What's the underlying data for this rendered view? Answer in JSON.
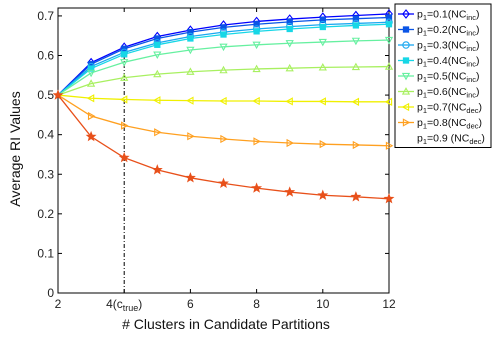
{
  "chart_data": {
    "type": "line",
    "xlabel": "# Clusters in Candidate Partitions",
    "ylabel": "Average RI Values",
    "xlim": [
      2,
      12
    ],
    "ylim": [
      0,
      0.72
    ],
    "x": [
      2,
      3,
      4,
      5,
      6,
      7,
      8,
      9,
      10,
      11,
      12
    ],
    "x_ticks": [
      {
        "value": 2,
        "label": "2"
      },
      {
        "value": 4,
        "label": "4(c",
        "sub": "true",
        "tail": ")"
      },
      {
        "value": 6,
        "label": "6"
      },
      {
        "value": 8,
        "label": "8"
      },
      {
        "value": 10,
        "label": "10"
      },
      {
        "value": 12,
        "label": "12"
      }
    ],
    "y_ticks": [
      {
        "value": 0,
        "label": "0"
      },
      {
        "value": 0.1,
        "label": "0.1"
      },
      {
        "value": 0.2,
        "label": "0.2"
      },
      {
        "value": 0.3,
        "label": "0.3"
      },
      {
        "value": 0.4,
        "label": "0.4"
      },
      {
        "value": 0.5,
        "label": "0.5"
      },
      {
        "value": 0.6,
        "label": "0.6"
      },
      {
        "value": 0.7,
        "label": "0.7"
      }
    ],
    "vline": {
      "x": 4,
      "style": "dash-dot",
      "color": "#000000"
    },
    "grid": false,
    "legend_position": "top-right-outside",
    "series": [
      {
        "name": "p1=0.1(NCinc)",
        "legend": {
          "pre": "p",
          "sub1": "1",
          "mid": "=0.1(NC",
          "sub2": "inc",
          "post": ")"
        },
        "color": "#0000ff",
        "marker": "diamond",
        "values": [
          0.5,
          0.582,
          0.621,
          0.648,
          0.664,
          0.677,
          0.686,
          0.692,
          0.697,
          0.701,
          0.705
        ]
      },
      {
        "name": "p1=0.2(NCinc)",
        "legend": {
          "pre": "p",
          "sub1": "1",
          "mid": "=0.2(NC",
          "sub2": "inc",
          "post": ")"
        },
        "color": "#0a55e6",
        "marker": "square",
        "values": [
          0.5,
          0.578,
          0.617,
          0.643,
          0.659,
          0.671,
          0.679,
          0.685,
          0.69,
          0.693,
          0.696
        ]
      },
      {
        "name": "p1=0.3(NCinc)",
        "legend": {
          "pre": "p",
          "sub1": "1",
          "mid": "=0.3(NC",
          "sub2": "inc",
          "post": ")"
        },
        "color": "#1aa8f0",
        "marker": "circle",
        "values": [
          0.5,
          0.572,
          0.608,
          0.632,
          0.648,
          0.659,
          0.667,
          0.673,
          0.678,
          0.681,
          0.684
        ]
      },
      {
        "name": "p1=0.4(NCinc)",
        "legend": {
          "pre": "p",
          "sub1": "1",
          "mid": "=0.4(NC",
          "sub2": "inc",
          "post": ")"
        },
        "color": "#17d7e6",
        "marker": "square",
        "values": [
          0.5,
          0.567,
          0.603,
          0.627,
          0.643,
          0.653,
          0.661,
          0.667,
          0.672,
          0.676,
          0.679
        ]
      },
      {
        "name": "p1=0.5(NCinc)",
        "legend": {
          "pre": "p",
          "sub1": "1",
          "mid": "=0.5(NC",
          "sub2": "inc",
          "post": ")"
        },
        "color": "#66f0a0",
        "marker": "triangle-down",
        "values": [
          0.5,
          0.556,
          0.583,
          0.602,
          0.614,
          0.622,
          0.627,
          0.631,
          0.634,
          0.637,
          0.639
        ]
      },
      {
        "name": "p1=0.6(NCinc)",
        "legend": {
          "pre": "p",
          "sub1": "1",
          "mid": "=0.6(NC",
          "sub2": "inc",
          "post": ")"
        },
        "color": "#a8f060",
        "marker": "triangle-up",
        "values": [
          0.5,
          0.529,
          0.544,
          0.553,
          0.559,
          0.563,
          0.566,
          0.568,
          0.57,
          0.571,
          0.572
        ]
      },
      {
        "name": "p1=0.7(NCdec)",
        "legend": {
          "pre": "p",
          "sub1": "1",
          "mid": "=0.7(NC",
          "sub2": "dec",
          "post": ")"
        },
        "color": "#f0f000",
        "marker": "triangle-left",
        "values": [
          0.5,
          0.492,
          0.489,
          0.487,
          0.486,
          0.485,
          0.485,
          0.484,
          0.484,
          0.483,
          0.483
        ]
      },
      {
        "name": "p1=0.8(NCdec)",
        "legend": {
          "pre": "p",
          "sub1": "1",
          "mid": "=0.8(NC",
          "sub2": "dec",
          "post": ")"
        },
        "color": "#ffa020",
        "marker": "triangle-right",
        "values": [
          0.5,
          0.447,
          0.423,
          0.406,
          0.396,
          0.389,
          0.383,
          0.379,
          0.376,
          0.374,
          0.372
        ]
      },
      {
        "name": "p1=0.9 (NCdec)",
        "legend": {
          "pre": "p",
          "sub1": "1",
          "mid": "=0.9 (NC",
          "sub2": "dec",
          "post": ")"
        },
        "color": "#e8501a",
        "marker": "star",
        "values": [
          0.5,
          0.395,
          0.342,
          0.311,
          0.291,
          0.277,
          0.265,
          0.255,
          0.247,
          0.243,
          0.238
        ]
      }
    ]
  }
}
